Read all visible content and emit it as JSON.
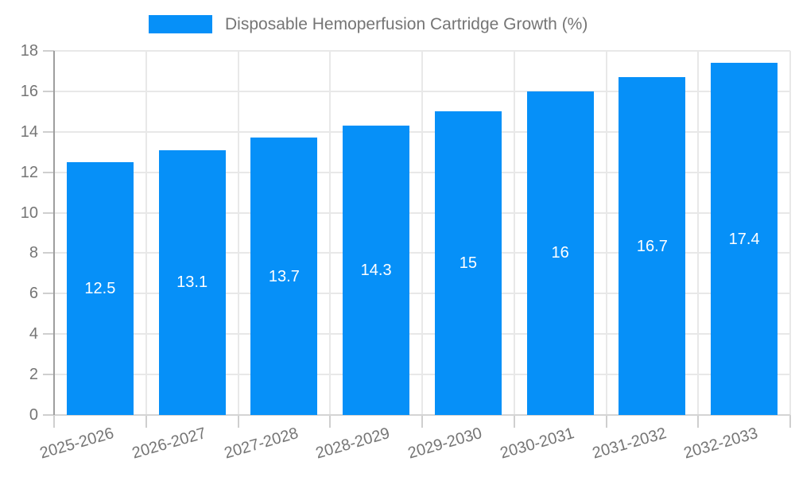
{
  "chart_data": {
    "type": "bar",
    "title": "Disposable Hemoperfusion Cartridge Growth (%)",
    "categories": [
      "2025-2026",
      "2026-2027",
      "2027-2028",
      "2028-2029",
      "2029-2030",
      "2030-2031",
      "2031-2032",
      "2032-2033"
    ],
    "values": [
      12.5,
      13.1,
      13.7,
      14.3,
      15,
      16,
      16.7,
      17.4
    ],
    "xlabel": "",
    "ylabel": "",
    "ylim": [
      0,
      18
    ],
    "yticks": [
      0,
      2,
      4,
      6,
      8,
      10,
      12,
      14,
      16,
      18
    ],
    "grid": true,
    "legend_position": "top",
    "bar_labels_inside": true
  },
  "legend": {
    "label": "Disposable Hemoperfusion Cartridge Growth (%)"
  },
  "colors": {
    "bar": "#0690f8",
    "bar_label": "#ffffff",
    "grid": "#e8e8e8",
    "y_axis_line": "#9e9e9e",
    "x_axis_line": "#d4d4d4",
    "tick": "#cfcfcf",
    "text": "#757575",
    "background": "#ffffff"
  }
}
